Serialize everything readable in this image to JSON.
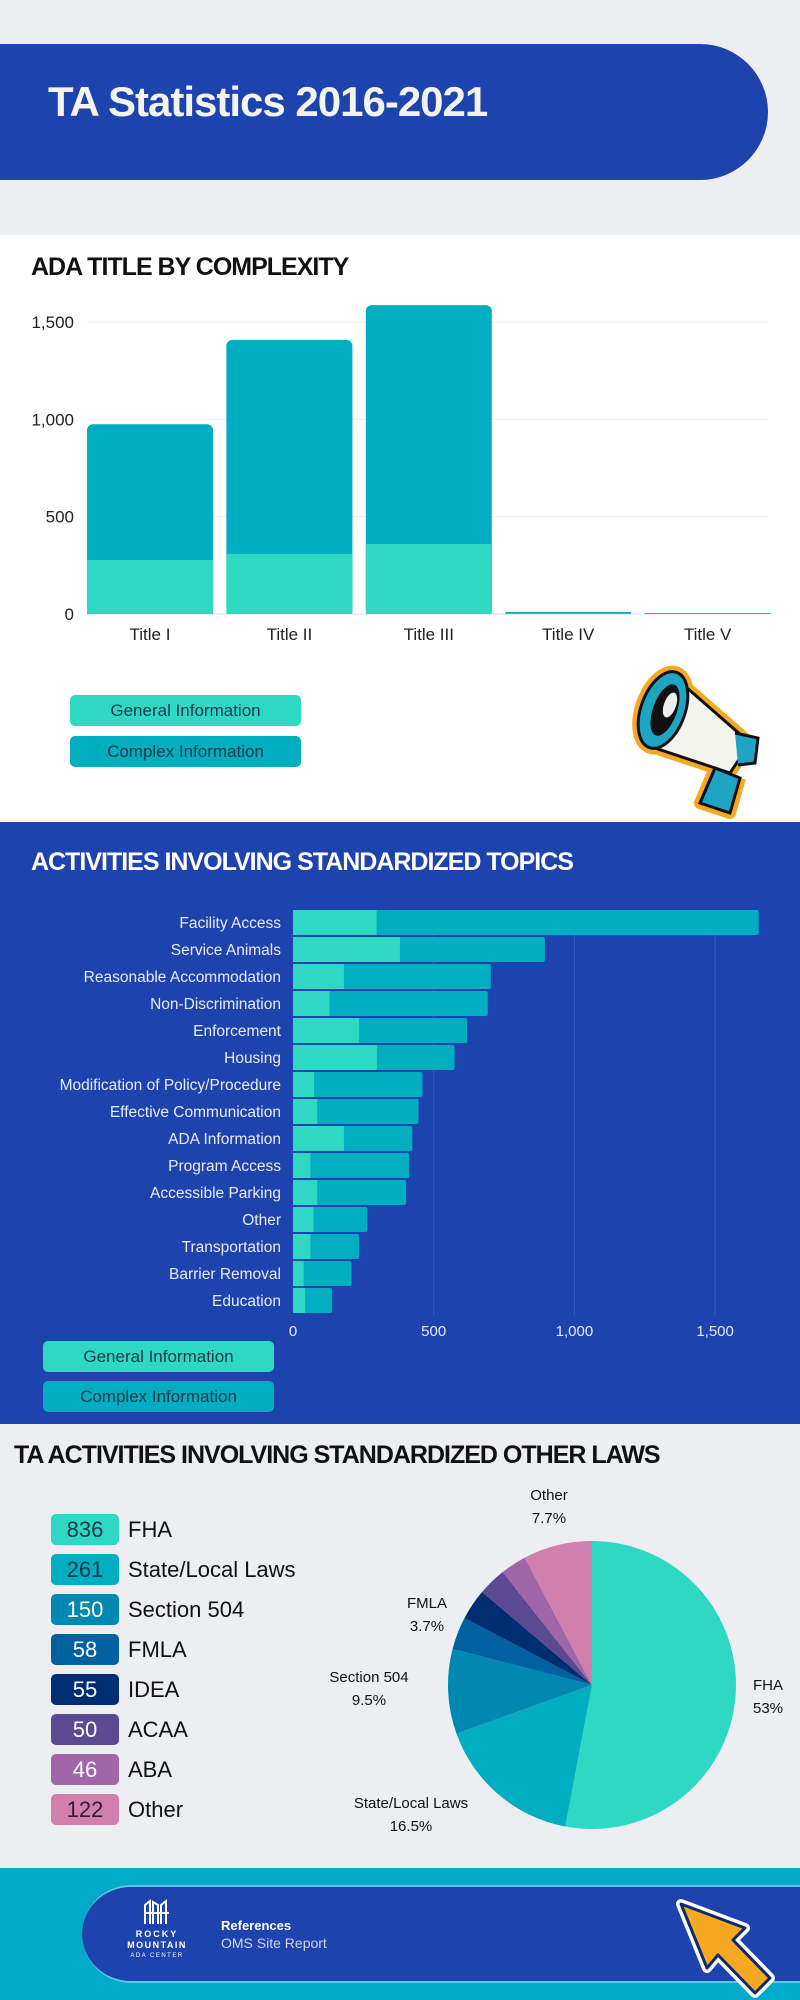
{
  "header": {
    "title": "TA Statistics 2016-2021"
  },
  "colors": {
    "primary_blue": "#1c43ae",
    "general": "#2ed8c3",
    "complex": "#00adc1",
    "accent_orange": "#f7a823"
  },
  "chart_data": [
    {
      "type": "bar",
      "orientation": "vertical",
      "stacked": true,
      "title": "ADA TITLE BY COMPLEXITY",
      "categories": [
        "Title I",
        "Title II",
        "Title III",
        "Title IV",
        "Title V"
      ],
      "series": [
        {
          "name": "General Information",
          "color": "#2ed8c3",
          "values": [
            277,
            308,
            360,
            3,
            2
          ]
        },
        {
          "name": "Complex Information",
          "color": "#00adc1",
          "values": [
            698,
            1100,
            1227,
            7,
            3
          ]
        }
      ],
      "yticks": [
        "0",
        "500",
        "1,000",
        "1,500"
      ],
      "ylim": [
        0,
        1600
      ],
      "grid": true,
      "legend_placement": "bottom-left"
    },
    {
      "type": "bar",
      "orientation": "horizontal",
      "stacked": true,
      "title": "ACTIVITIES INVOLVING STANDARDIZED TOPICS",
      "categories": [
        "Facility Access",
        "Service Animals",
        "Reasonable Accommodation",
        "Non-Discrimination",
        "Enforcement",
        "Housing",
        "Modification of Policy/Procedure",
        "Effective Communication",
        "ADA Information",
        "Program Access",
        "Accessible Parking",
        "Other",
        "Transportation",
        "Barrier Removal",
        "Education"
      ],
      "series": [
        {
          "name": "General Information",
          "color": "#2ed8c3",
          "values": [
            297,
            380,
            181,
            130,
            235,
            298,
            75,
            86,
            181,
            62,
            86,
            73,
            62,
            38,
            43
          ]
        },
        {
          "name": "Complex Information",
          "color": "#00adc1",
          "values": [
            1358,
            515,
            522,
            562,
            384,
            276,
            385,
            360,
            243,
            351,
            316,
            191,
            173,
            170,
            96
          ]
        }
      ],
      "xticks": [
        "0",
        "500",
        "1,000",
        "1,500"
      ],
      "xlim": [
        0,
        1700
      ],
      "grid": true,
      "legend_placement": "bottom-left"
    },
    {
      "type": "pie",
      "title": "TA ACTIVITIES INVOLVING STANDARDIZED OTHER LAWS",
      "slices": [
        {
          "label": "FHA",
          "value": 836,
          "color": "#2ed8c3",
          "pct_label": "53%"
        },
        {
          "label": "State/Local Laws",
          "value": 261,
          "color": "#00adc1",
          "pct_label": "16.5%"
        },
        {
          "label": "Section 504",
          "value": 150,
          "color": "#0088b3",
          "pct_label": "9.5%"
        },
        {
          "label": "FMLA",
          "value": 58,
          "color": "#0160a0",
          "pct_label": "3.7%"
        },
        {
          "label": "IDEA",
          "value": 55,
          "color": "#012e72",
          "pct_label": ""
        },
        {
          "label": "ACAA",
          "value": 50,
          "color": "#5b4a91",
          "pct_label": ""
        },
        {
          "label": "ABA",
          "value": 46,
          "color": "#a066a8",
          "pct_label": ""
        },
        {
          "label": "Other",
          "value": 122,
          "color": "#d17fac",
          "pct_label": "7.7%"
        }
      ],
      "legend_placement": "left"
    }
  ],
  "legend": {
    "general": "General Information",
    "complex": "Complex Information"
  },
  "footer": {
    "logo": {
      "line1": "ROCKY",
      "line2": "MOUNTAIN",
      "line3": "ADA CENTER"
    },
    "references_label": "References",
    "references_value": "OMS Site Report"
  }
}
